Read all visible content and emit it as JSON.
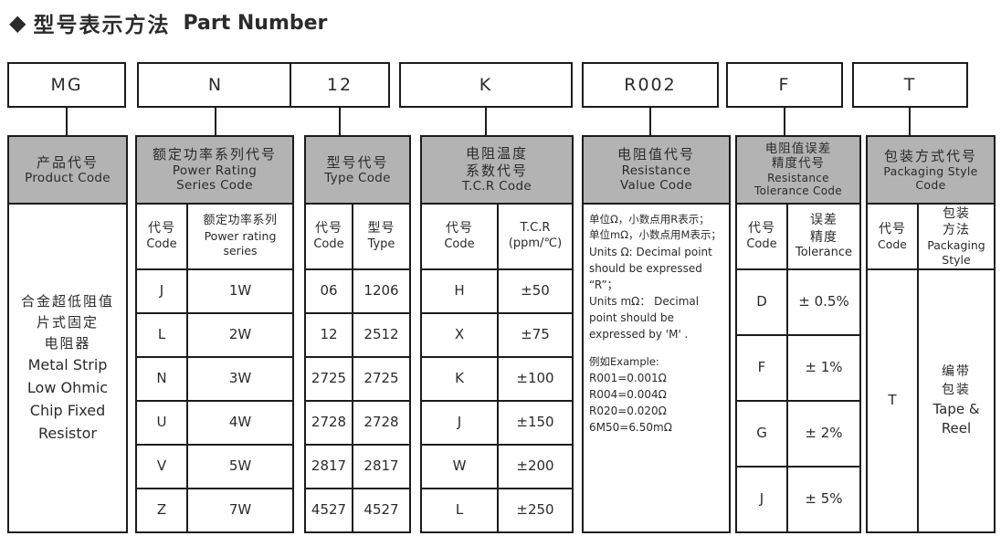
{
  "title": {
    "bullet": "◆",
    "zh": "型号表示方法",
    "en": "Part Number"
  },
  "part_codes": [
    {
      "code": "MG"
    },
    {
      "code": "N"
    },
    {
      "code": "12"
    },
    {
      "code": "K"
    },
    {
      "code": "R002"
    },
    {
      "code": "F"
    },
    {
      "code": "T"
    }
  ],
  "colors": {
    "header_fill": "#b3b3b3",
    "border": "#1c1c1c",
    "background": "#ffffff"
  },
  "columns": [
    {
      "id": "product-code",
      "header_lines": [
        "产品代号",
        "Product Code"
      ],
      "body": {
        "type": "textblock",
        "lines": [
          "合金超低阻值",
          "片式固定",
          "电阻器",
          "Metal Strip",
          "Low Ohmic",
          "Chip Fixed",
          "Resistor"
        ]
      }
    },
    {
      "id": "power-rating-series-code",
      "header_lines": [
        "额定功率系列代号",
        "Power Rating",
        "Series Code"
      ],
      "body": {
        "type": "table",
        "subheader": [
          [
            "代号",
            "Code"
          ],
          [
            "额定功率系列",
            "Power rating",
            "series"
          ]
        ],
        "rows": [
          [
            "J",
            "1W"
          ],
          [
            "L",
            "2W"
          ],
          [
            "N",
            "3W"
          ],
          [
            "U",
            "4W"
          ],
          [
            "V",
            "5W"
          ],
          [
            "Z",
            "7W"
          ]
        ]
      }
    },
    {
      "id": "type-code",
      "header_lines": [
        "型号代号",
        "Type Code"
      ],
      "body": {
        "type": "table",
        "subheader": [
          [
            "代号",
            "Code"
          ],
          [
            "型号",
            "Type"
          ]
        ],
        "rows": [
          [
            "06",
            "1206"
          ],
          [
            "12",
            "2512"
          ],
          [
            "2725",
            "2725"
          ],
          [
            "2728",
            "2728"
          ],
          [
            "2817",
            "2817"
          ],
          [
            "4527",
            "4527"
          ]
        ]
      }
    },
    {
      "id": "tcr-code",
      "header_lines": [
        "电阻温度",
        "系数代号",
        "T.C.R Code"
      ],
      "body": {
        "type": "table",
        "subheader": [
          [
            "代号",
            "Code"
          ],
          [
            "T.C.R",
            "(ppm/℃)"
          ]
        ],
        "rows": [
          [
            "H",
            "±50"
          ],
          [
            "X",
            "±75"
          ],
          [
            "K",
            "±100"
          ],
          [
            "J",
            "±150"
          ],
          [
            "W",
            "±200"
          ],
          [
            "L",
            "±250"
          ]
        ]
      }
    },
    {
      "id": "resistance-value-code",
      "header_lines": [
        "电阻值代号",
        "Resistance",
        "Value Code"
      ],
      "body": {
        "type": "textlines",
        "lines": [
          "单位Ω，小数点用R表示；",
          "单位mΩ，小数点用M表示；",
          "Units Ω: Decimal point",
          "should be expressed",
          "“R”；",
          "Units mΩ： Decimal",
          "point should be",
          "expressed by 'M' .",
          "",
          "例如Example:",
          "R001=0.001Ω",
          "R004=0.004Ω",
          "R020=0.020Ω",
          "6M50=6.50mΩ"
        ]
      }
    },
    {
      "id": "resistance-tolerance-code",
      "header_lines": [
        "电阻值误差",
        "精度代号",
        "Resistance",
        "Tolerance Code"
      ],
      "body": {
        "type": "table",
        "subheader": [
          [
            "代号",
            "Code"
          ],
          [
            "误差",
            "精度",
            "Tolerance"
          ]
        ],
        "rows": [
          [
            "D",
            "± 0.5%"
          ],
          [
            "F",
            "± 1%"
          ],
          [
            "G",
            "± 2%"
          ],
          [
            "J",
            "± 5%"
          ]
        ]
      }
    },
    {
      "id": "packaging-style-code",
      "header_lines": [
        "包装方式代号",
        "Packaging Style",
        "Code"
      ],
      "body": {
        "type": "table",
        "subheader": [
          [
            "代号",
            "Code"
          ],
          [
            "包装",
            "方法",
            "Packaging",
            "Style"
          ]
        ],
        "rows": [
          [
            "T",
            [
              "编带",
              "包装",
              "Tape  &",
              "Reel"
            ]
          ]
        ]
      }
    }
  ]
}
